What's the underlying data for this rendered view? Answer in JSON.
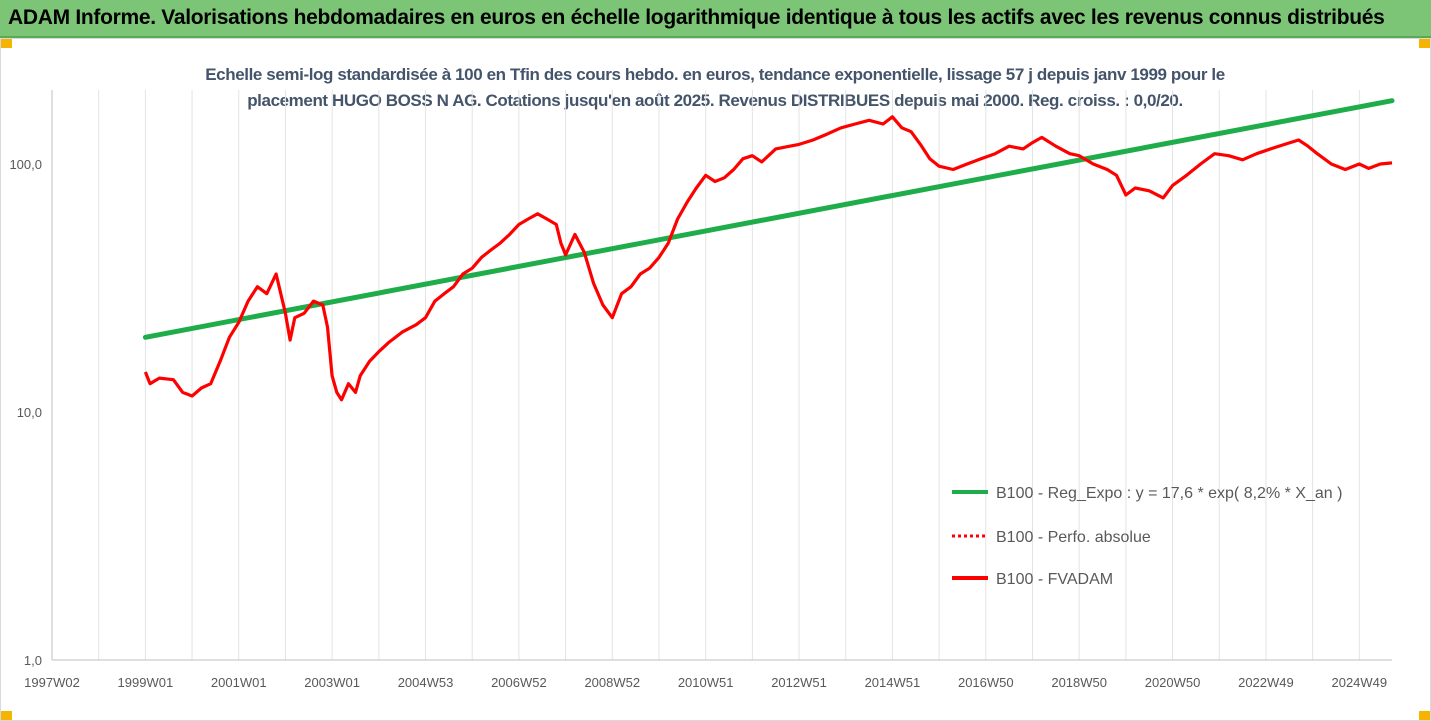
{
  "banner": {
    "title": "ADAM Informe. Valorisations hebdomadaires en euros en échelle logarithmique identique à tous les actifs avec les revenus connus distribués"
  },
  "colors": {
    "banner_bg": "#7cc576",
    "accent": "#f4b400",
    "trend": "#1fad4b",
    "series": "#ff0000",
    "title": "#44546a"
  },
  "chart_data": {
    "type": "line",
    "title_line1": "Echelle semi-log standardisée à 100 en Tfin des cours hebdo. en euros, tendance exponentielle, lissage 57 j depuis janv 1999 pour le",
    "title_line2": "placement HUGO BOSS N AG. Cotations jusqu'en août 2025. Revenus DISTRIBUES depuis mai 2000. Reg. croiss. : 0,0/20.",
    "yscale": "log",
    "ylim": [
      1,
      200
    ],
    "y_ticks": [
      {
        "value": 1,
        "label": "1,0"
      },
      {
        "value": 10,
        "label": "10,0"
      },
      {
        "value": 100,
        "label": "100,0"
      }
    ],
    "xlim": [
      1997.0,
      2025.7
    ],
    "x_ticks": [
      {
        "year": 1997.0,
        "label": "1997W02"
      },
      {
        "year": 1999.0,
        "label": "1999W01"
      },
      {
        "year": 2001.0,
        "label": "2001W01"
      },
      {
        "year": 2003.0,
        "label": "2003W01"
      },
      {
        "year": 2005.0,
        "label": "2004W53"
      },
      {
        "year": 2007.0,
        "label": "2006W52"
      },
      {
        "year": 2009.0,
        "label": "2008W52"
      },
      {
        "year": 2011.0,
        "label": "2010W51"
      },
      {
        "year": 2013.0,
        "label": "2012W51"
      },
      {
        "year": 2015.0,
        "label": "2014W51"
      },
      {
        "year": 2017.0,
        "label": "2016W50"
      },
      {
        "year": 2019.0,
        "label": "2018W50"
      },
      {
        "year": 2021.0,
        "label": "2020W50"
      },
      {
        "year": 2023.0,
        "label": "2022W49"
      },
      {
        "year": 2025.0,
        "label": "2024W49"
      }
    ],
    "grid": "vertical",
    "legend_position": "bottom-right",
    "series": [
      {
        "name": "B100 - Reg_Expo : y = 17,6 * exp( 8,2% *  X_an )",
        "style": "solid",
        "color": "#1fad4b",
        "points": [
          [
            1999.0,
            20.0
          ],
          [
            2025.7,
            180.0
          ]
        ]
      },
      {
        "name": "B100 - Perfo. absolue",
        "style": "dotted",
        "color": "#ff0000",
        "points": []
      },
      {
        "name": "B100 - FVADAM",
        "style": "solid",
        "color": "#ff0000",
        "points": [
          [
            1999.0,
            14.5
          ],
          [
            1999.1,
            13.0
          ],
          [
            1999.3,
            13.7
          ],
          [
            1999.6,
            13.5
          ],
          [
            1999.8,
            12.0
          ],
          [
            2000.0,
            11.6
          ],
          [
            2000.2,
            12.5
          ],
          [
            2000.4,
            13.0
          ],
          [
            2000.6,
            16.0
          ],
          [
            2000.8,
            20.0
          ],
          [
            2001.0,
            23.0
          ],
          [
            2001.2,
            28.0
          ],
          [
            2001.4,
            32.0
          ],
          [
            2001.6,
            30.0
          ],
          [
            2001.8,
            36.0
          ],
          [
            2001.9,
            30.0
          ],
          [
            2002.0,
            25.0
          ],
          [
            2002.1,
            19.5
          ],
          [
            2002.2,
            24.0
          ],
          [
            2002.4,
            25.0
          ],
          [
            2002.6,
            28.0
          ],
          [
            2002.8,
            27.0
          ],
          [
            2002.9,
            22.0
          ],
          [
            2003.0,
            14.0
          ],
          [
            2003.1,
            12.0
          ],
          [
            2003.2,
            11.2
          ],
          [
            2003.35,
            13.0
          ],
          [
            2003.5,
            12.0
          ],
          [
            2003.6,
            14.0
          ],
          [
            2003.8,
            16.0
          ],
          [
            2004.0,
            17.5
          ],
          [
            2004.2,
            19.0
          ],
          [
            2004.5,
            21.0
          ],
          [
            2004.8,
            22.5
          ],
          [
            2005.0,
            24.0
          ],
          [
            2005.2,
            28.0
          ],
          [
            2005.4,
            30.0
          ],
          [
            2005.6,
            32.0
          ],
          [
            2005.8,
            36.0
          ],
          [
            2006.0,
            38.0
          ],
          [
            2006.2,
            42.0
          ],
          [
            2006.4,
            45.0
          ],
          [
            2006.6,
            48.0
          ],
          [
            2006.8,
            52.0
          ],
          [
            2007.0,
            57.0
          ],
          [
            2007.2,
            60.0
          ],
          [
            2007.4,
            63.0
          ],
          [
            2007.6,
            60.0
          ],
          [
            2007.8,
            57.0
          ],
          [
            2007.9,
            48.0
          ],
          [
            2008.0,
            43.0
          ],
          [
            2008.2,
            52.0
          ],
          [
            2008.4,
            44.0
          ],
          [
            2008.6,
            33.0
          ],
          [
            2008.8,
            27.0
          ],
          [
            2009.0,
            24.0
          ],
          [
            2009.2,
            30.0
          ],
          [
            2009.4,
            32.0
          ],
          [
            2009.6,
            36.0
          ],
          [
            2009.8,
            38.0
          ],
          [
            2010.0,
            42.0
          ],
          [
            2010.2,
            48.0
          ],
          [
            2010.4,
            60.0
          ],
          [
            2010.6,
            70.0
          ],
          [
            2010.8,
            80.0
          ],
          [
            2011.0,
            90.0
          ],
          [
            2011.2,
            85.0
          ],
          [
            2011.4,
            88.0
          ],
          [
            2011.6,
            95.0
          ],
          [
            2011.8,
            105.0
          ],
          [
            2012.0,
            108.0
          ],
          [
            2012.2,
            102.0
          ],
          [
            2012.5,
            115.0
          ],
          [
            2012.8,
            118.0
          ],
          [
            2013.0,
            120.0
          ],
          [
            2013.3,
            125.0
          ],
          [
            2013.6,
            132.0
          ],
          [
            2013.9,
            140.0
          ],
          [
            2014.2,
            145.0
          ],
          [
            2014.5,
            150.0
          ],
          [
            2014.8,
            145.0
          ],
          [
            2015.0,
            155.0
          ],
          [
            2015.2,
            140.0
          ],
          [
            2015.4,
            135.0
          ],
          [
            2015.6,
            120.0
          ],
          [
            2015.8,
            105.0
          ],
          [
            2016.0,
            98.0
          ],
          [
            2016.3,
            95.0
          ],
          [
            2016.6,
            100.0
          ],
          [
            2016.9,
            105.0
          ],
          [
            2017.2,
            110.0
          ],
          [
            2017.5,
            118.0
          ],
          [
            2017.8,
            115.0
          ],
          [
            2018.0,
            122.0
          ],
          [
            2018.2,
            128.0
          ],
          [
            2018.5,
            118.0
          ],
          [
            2018.8,
            110.0
          ],
          [
            2019.0,
            108.0
          ],
          [
            2019.3,
            100.0
          ],
          [
            2019.6,
            95.0
          ],
          [
            2019.8,
            90.0
          ],
          [
            2020.0,
            75.0
          ],
          [
            2020.2,
            80.0
          ],
          [
            2020.5,
            78.0
          ],
          [
            2020.8,
            73.0
          ],
          [
            2021.0,
            82.0
          ],
          [
            2021.3,
            90.0
          ],
          [
            2021.6,
            100.0
          ],
          [
            2021.9,
            110.0
          ],
          [
            2022.2,
            108.0
          ],
          [
            2022.5,
            104.0
          ],
          [
            2022.8,
            110.0
          ],
          [
            2023.1,
            115.0
          ],
          [
            2023.4,
            120.0
          ],
          [
            2023.7,
            125.0
          ],
          [
            2023.9,
            118.0
          ],
          [
            2024.1,
            110.0
          ],
          [
            2024.4,
            100.0
          ],
          [
            2024.7,
            95.0
          ],
          [
            2025.0,
            100.0
          ],
          [
            2025.2,
            96.0
          ],
          [
            2025.45,
            100.0
          ],
          [
            2025.7,
            101.0
          ]
        ]
      }
    ]
  }
}
